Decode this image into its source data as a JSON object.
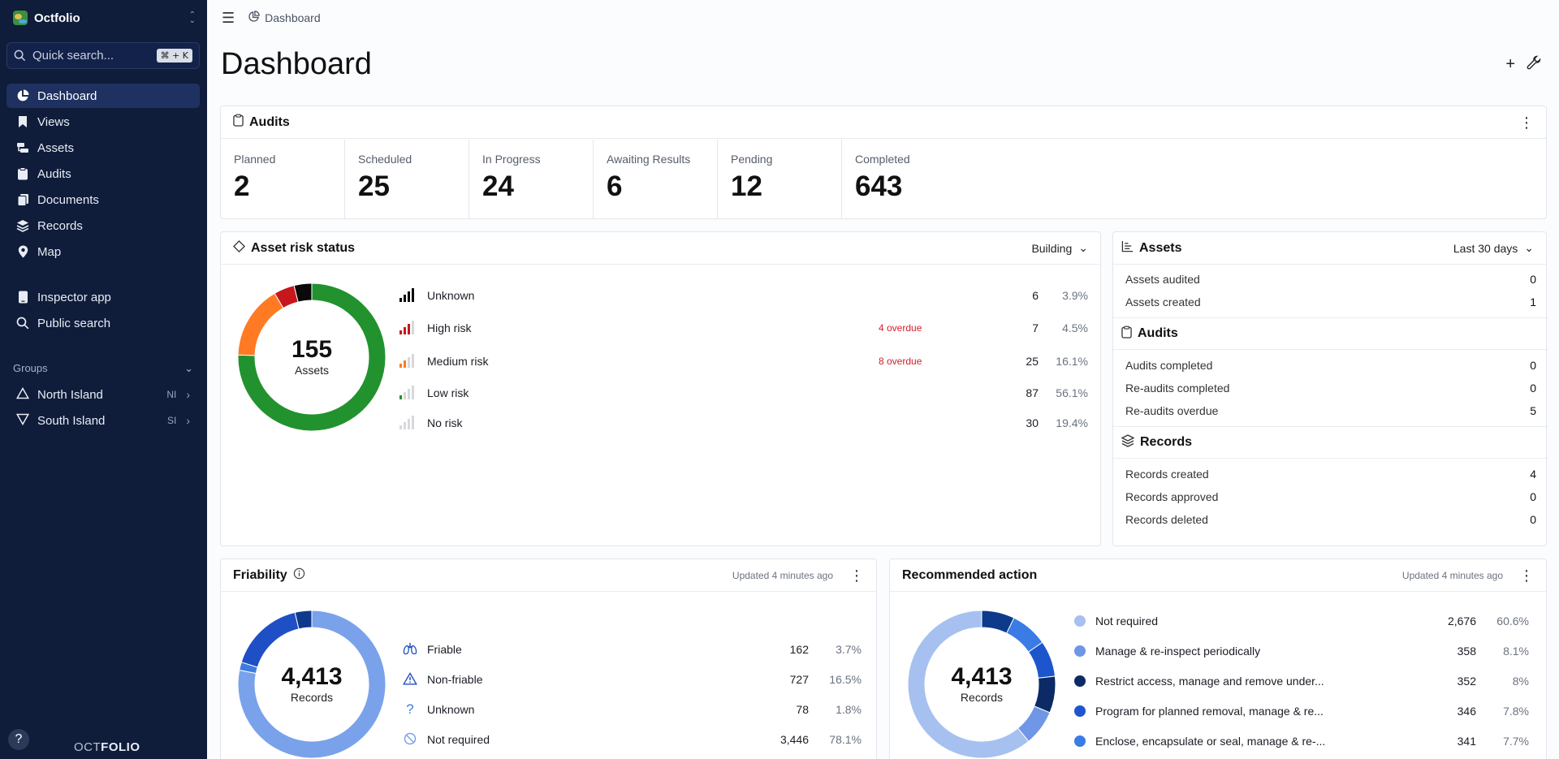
{
  "sidebar": {
    "brand": "Octfolio",
    "search_placeholder": "Quick search...",
    "search_shortcut": "⌘ + K",
    "nav": [
      {
        "label": "Dashboard",
        "icon": "pie-chart-icon"
      },
      {
        "label": "Views",
        "icon": "bookmark-icon"
      },
      {
        "label": "Assets",
        "icon": "assets-icon"
      },
      {
        "label": "Audits",
        "icon": "clipboard-icon"
      },
      {
        "label": "Documents",
        "icon": "documents-icon"
      },
      {
        "label": "Records",
        "icon": "layers-icon"
      },
      {
        "label": "Map",
        "icon": "map-pin-icon"
      }
    ],
    "tools": [
      {
        "label": "Inspector app",
        "icon": "tablet-icon"
      },
      {
        "label": "Public search",
        "icon": "search-icon"
      }
    ],
    "groups_title": "Groups",
    "groups": [
      {
        "label": "North Island",
        "abbr": "NI"
      },
      {
        "label": "South Island",
        "abbr": "SI"
      }
    ],
    "help": "?",
    "footer_logo": {
      "a": "OCT",
      "b": "FOLIO"
    }
  },
  "header": {
    "breadcrumb": "Dashboard",
    "title": "Dashboard"
  },
  "audits_card": {
    "title": "Audits",
    "stats": [
      {
        "label": "Planned",
        "value": "2"
      },
      {
        "label": "Scheduled",
        "value": "25"
      },
      {
        "label": "In Progress",
        "value": "24"
      },
      {
        "label": "Awaiting Results",
        "value": "6"
      },
      {
        "label": "Pending",
        "value": "12"
      },
      {
        "label": "Completed",
        "value": "643"
      }
    ]
  },
  "risk_card": {
    "title": "Asset risk status",
    "filter": "Building",
    "total": "155",
    "total_label": "Assets",
    "rows": [
      {
        "name": "Unknown",
        "overdue": "",
        "count": "6",
        "pct": "3.9%",
        "color": "#0a0a0a"
      },
      {
        "name": "High risk",
        "overdue": "4 overdue",
        "count": "7",
        "pct": "4.5%",
        "color": "#c8161d"
      },
      {
        "name": "Medium risk",
        "overdue": "8 overdue",
        "count": "25",
        "pct": "16.1%",
        "color": "#ff7a22"
      },
      {
        "name": "Low risk",
        "overdue": "",
        "count": "87",
        "pct": "56.1%",
        "color": "#22922e"
      },
      {
        "name": "No risk",
        "overdue": "",
        "count": "30",
        "pct": "19.4%",
        "color": "#c9ccd2"
      }
    ]
  },
  "summary_card": {
    "title": "Assets",
    "period": "Last 30 days",
    "assets": [
      {
        "label": "Assets audited",
        "value": "0"
      },
      {
        "label": "Assets created",
        "value": "1"
      }
    ],
    "audits_title": "Audits",
    "audits": [
      {
        "label": "Audits completed",
        "value": "0"
      },
      {
        "label": "Re-audits completed",
        "value": "0"
      },
      {
        "label": "Re-audits overdue",
        "value": "5"
      }
    ],
    "records_title": "Records",
    "records": [
      {
        "label": "Records created",
        "value": "4"
      },
      {
        "label": "Records approved",
        "value": "0"
      },
      {
        "label": "Records deleted",
        "value": "0"
      }
    ]
  },
  "friability_card": {
    "title": "Friability",
    "updated": "Updated 4 minutes ago",
    "total": "4,413",
    "total_label": "Records",
    "rows": [
      {
        "name": "Friable",
        "count": "162",
        "pct": "3.7%",
        "icon": "lungs-icon",
        "color": "#0e3a8c"
      },
      {
        "name": "Non-friable",
        "count": "727",
        "pct": "16.5%",
        "icon": "warning-triangle-icon",
        "color": "#1f4fc4"
      },
      {
        "name": "Unknown",
        "count": "78",
        "pct": "1.8%",
        "icon": "question-icon",
        "color": "#3f7be0"
      },
      {
        "name": "Not required",
        "count": "3,446",
        "pct": "78.1%",
        "icon": "prohibited-icon",
        "color": "#7aa2ea"
      }
    ]
  },
  "action_card": {
    "title": "Recommended action",
    "updated": "Updated 4 minutes ago",
    "total": "4,413",
    "total_label": "Records",
    "rows": [
      {
        "name": "Not required",
        "count": "2,676",
        "pct": "60.6%",
        "color": "#a6c1f0"
      },
      {
        "name": "Manage & re-inspect periodically",
        "count": "358",
        "pct": "8.1%",
        "color": "#6f97e6"
      },
      {
        "name": "Restrict access, manage and remove under...",
        "count": "352",
        "pct": "8%",
        "color": "#0b2a66"
      },
      {
        "name": "Program for planned removal, manage & re...",
        "count": "346",
        "pct": "7.8%",
        "color": "#1d56cc"
      },
      {
        "name": "Enclose, encapsulate or seal, manage & re-...",
        "count": "341",
        "pct": "7.7%",
        "color": "#3a7be6"
      }
    ]
  }
}
